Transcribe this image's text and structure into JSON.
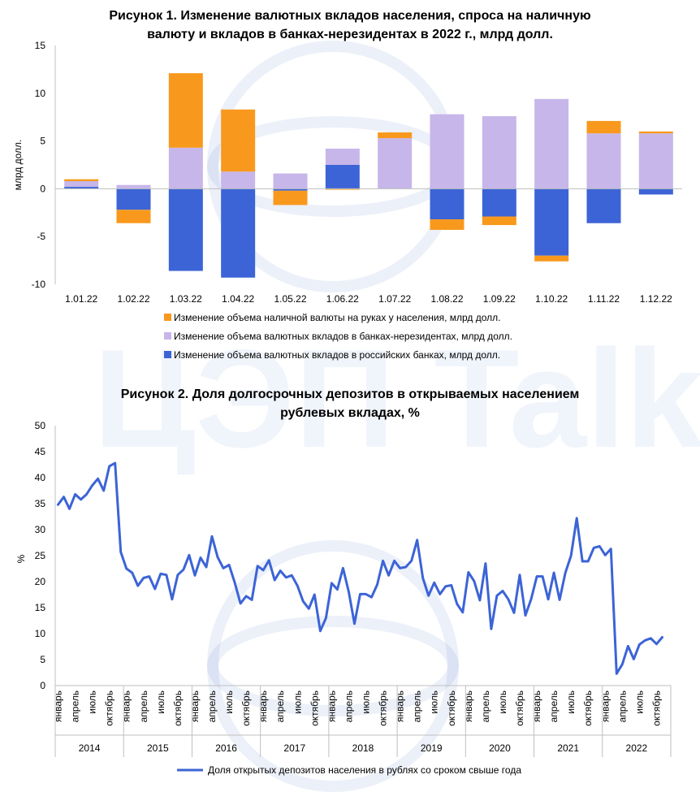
{
  "watermark": "ЦЭП Talks",
  "chart_data": [
    {
      "type": "bar",
      "stacked": true,
      "title": [
        "Рисунок 1. Изменение валютных вкладов населения, спроса на наличную",
        "валюту и вкладов в банках-нерезидентах в 2022 г., млрд долл."
      ],
      "ylabel": "млрд долл.",
      "ylim": [
        -10,
        15
      ],
      "yticks": [
        -10,
        -5,
        0,
        5,
        10,
        15
      ],
      "categories": [
        "1.01.22",
        "1.02.22",
        "1.03.22",
        "1.04.22",
        "1.05.22",
        "1.06.22",
        "1.07.22",
        "1.08.22",
        "1.09.22",
        "1.10.22",
        "1.11.22",
        "1.12.22"
      ],
      "series": [
        {
          "name": "Изменение объема наличной валюты на руках у населения, млрд долл.",
          "color": "#F8991D",
          "values": [
            0.2,
            -1.4,
            7.8,
            6.5,
            -1.5,
            -0.1,
            0.6,
            -1.1,
            -0.9,
            -0.6,
            1.3,
            0.2
          ]
        },
        {
          "name": "Изменение объема валютных вкладов в банках-нерезидентах, млрд долл.",
          "color": "#C6B6EA",
          "values": [
            0.6,
            0.4,
            4.3,
            1.8,
            1.6,
            1.7,
            5.3,
            7.8,
            7.6,
            9.4,
            5.8,
            5.8
          ]
        },
        {
          "name": "Изменение объема валютных вкладов в российских банках, млрд долл.",
          "color": "#3C64D6",
          "values": [
            0.2,
            -2.2,
            -8.6,
            -9.3,
            -0.2,
            2.5,
            0.0,
            -3.2,
            -2.9,
            -7.0,
            -3.6,
            -0.6
          ]
        }
      ]
    },
    {
      "type": "line",
      "title": [
        "Рисунок 2. Доля долгосрочных депозитов в открываемых населением",
        "рублевых вкладах, %"
      ],
      "ylabel": "%",
      "ylim": [
        0,
        50
      ],
      "yticks": [
        0,
        5,
        10,
        15,
        20,
        25,
        30,
        35,
        40,
        45,
        50
      ],
      "month_labels": [
        "январь",
        "апрель",
        "июль",
        "октябрь"
      ],
      "years": [
        "2014",
        "2015",
        "2016",
        "2017",
        "2018",
        "2019",
        "2020",
        "2021",
        "2022"
      ],
      "series": [
        {
          "name": "Доля открытых депозитов населения в рублях со сроком свыше года",
          "color": "#3C64D6",
          "values": [
            34.8,
            36.3,
            34.0,
            36.8,
            35.8,
            36.8,
            38.5,
            39.8,
            37.5,
            42.2,
            42.8,
            25.7,
            22.5,
            21.7,
            19.2,
            20.7,
            21.0,
            18.6,
            21.5,
            21.3,
            16.6,
            21.3,
            22.3,
            25.1,
            21.2,
            24.6,
            22.8,
            28.7,
            24.7,
            22.6,
            23.2,
            19.8,
            15.8,
            17.2,
            16.5,
            23.0,
            22.2,
            24.1,
            20.3,
            22.1,
            20.8,
            21.2,
            19.2,
            16.2,
            14.8,
            17.5,
            10.5,
            13.0,
            19.7,
            18.5,
            22.6,
            18.0,
            11.9,
            17.6,
            17.6,
            17.0,
            19.4,
            24.0,
            21.2,
            24.0,
            22.6,
            22.8,
            24.0,
            28.0,
            20.7,
            17.3,
            19.8,
            17.6,
            19.1,
            19.3,
            15.7,
            14.1,
            21.8,
            20.1,
            16.4,
            23.5,
            10.9,
            17.3,
            18.2,
            16.6,
            14.0,
            21.3,
            13.5,
            16.6,
            21.0,
            21.0,
            16.6,
            21.7,
            16.5,
            21.7,
            25.0,
            32.2,
            23.9,
            23.9,
            26.5,
            26.8,
            25.1,
            26.3,
            2.3,
            4.1,
            7.6,
            5.1,
            7.9,
            8.7,
            9.1,
            8.0,
            9.3
          ]
        }
      ]
    }
  ]
}
